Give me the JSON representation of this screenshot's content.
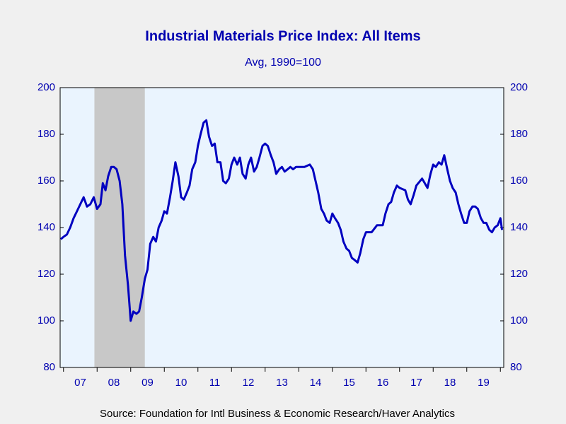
{
  "chart_data": {
    "type": "line",
    "title": "Industrial Materials Price Index: All Items",
    "subtitle": "Avg, 1990=100",
    "source": "Source:  Foundation for Intl Business & Economic Research/Haver Analytics",
    "series": [
      {
        "name": "Industrial Materials Price Index",
        "color": "#0000c0",
        "x": [
          2006.92,
          2007.0,
          2007.1,
          2007.2,
          2007.3,
          2007.4,
          2007.5,
          2007.6,
          2007.7,
          2007.8,
          2007.9,
          2008.0,
          2008.1,
          2008.17,
          2008.25,
          2008.33,
          2008.42,
          2008.5,
          2008.58,
          2008.67,
          2008.75,
          2008.83,
          2008.92,
          2009.0,
          2009.08,
          2009.17,
          2009.25,
          2009.33,
          2009.42,
          2009.5,
          2009.58,
          2009.67,
          2009.75,
          2009.83,
          2009.92,
          2010.0,
          2010.08,
          2010.17,
          2010.25,
          2010.33,
          2010.42,
          2010.5,
          2010.58,
          2010.67,
          2010.75,
          2010.83,
          2010.92,
          2011.0,
          2011.08,
          2011.17,
          2011.25,
          2011.33,
          2011.42,
          2011.5,
          2011.58,
          2011.67,
          2011.75,
          2011.83,
          2011.92,
          2012.0,
          2012.08,
          2012.17,
          2012.25,
          2012.33,
          2012.42,
          2012.5,
          2012.58,
          2012.67,
          2012.75,
          2012.83,
          2012.92,
          2013.0,
          2013.08,
          2013.17,
          2013.25,
          2013.33,
          2013.42,
          2013.5,
          2013.58,
          2013.67,
          2013.75,
          2013.83,
          2013.92,
          2014.0,
          2014.17,
          2014.33,
          2014.42,
          2014.5,
          2014.58,
          2014.67,
          2014.75,
          2014.83,
          2014.92,
          2015.0,
          2015.08,
          2015.17,
          2015.25,
          2015.33,
          2015.42,
          2015.5,
          2015.58,
          2015.67,
          2015.75,
          2015.83,
          2015.92,
          2016.0,
          2016.17,
          2016.33,
          2016.5,
          2016.58,
          2016.67,
          2016.75,
          2016.83,
          2016.92,
          2017.0,
          2017.17,
          2017.25,
          2017.33,
          2017.42,
          2017.5,
          2017.67,
          2017.83,
          2017.92,
          2018.0,
          2018.08,
          2018.17,
          2018.25,
          2018.33,
          2018.42,
          2018.5,
          2018.58,
          2018.67,
          2018.75,
          2018.83,
          2018.92,
          2019.0,
          2019.08,
          2019.17,
          2019.25,
          2019.33,
          2019.42,
          2019.5,
          2019.58,
          2019.67,
          2019.75,
          2019.83,
          2019.92,
          2020.0,
          2020.05
        ],
        "values": [
          135,
          136,
          137,
          140,
          144,
          147,
          150,
          153,
          149,
          150,
          153,
          148,
          150,
          159,
          156,
          162,
          166,
          166,
          165,
          160,
          150,
          128,
          115,
          100,
          104,
          103,
          104,
          110,
          118,
          122,
          133,
          136,
          134,
          140,
          143,
          147,
          146,
          153,
          160,
          168,
          162,
          153,
          152,
          155,
          158,
          165,
          168,
          175,
          180,
          185,
          186,
          179,
          175,
          176,
          168,
          168,
          160,
          159,
          161,
          167,
          170,
          167,
          170,
          163,
          161,
          167,
          170,
          164,
          166,
          170,
          175,
          176,
          175,
          171,
          168,
          163,
          165,
          166,
          164,
          165,
          166,
          165,
          166,
          166,
          166,
          167,
          165,
          160,
          155,
          148,
          146,
          143,
          142,
          146,
          144,
          142,
          139,
          134,
          131,
          130,
          127,
          126,
          125,
          129,
          135,
          138,
          138,
          141,
          141,
          146,
          150,
          151,
          155,
          158,
          157,
          156,
          152,
          150,
          154,
          158,
          161,
          157,
          163,
          167,
          166,
          168,
          167,
          171,
          165,
          160,
          157,
          155,
          150,
          146,
          142,
          142,
          147,
          149,
          149,
          148,
          144,
          142,
          142,
          139,
          138,
          140,
          141,
          144,
          139
        ]
      }
    ],
    "shading": [
      2007.92,
      2009.42
    ],
    "xlim": [
      2006.9,
      2020.1
    ],
    "xticks": [
      {
        "value": 2007.5,
        "label": "07"
      },
      {
        "value": 2008.5,
        "label": "08"
      },
      {
        "value": 2009.5,
        "label": "09"
      },
      {
        "value": 2010.5,
        "label": "10"
      },
      {
        "value": 2011.5,
        "label": "11"
      },
      {
        "value": 2012.5,
        "label": "12"
      },
      {
        "value": 2013.5,
        "label": "13"
      },
      {
        "value": 2014.5,
        "label": "14"
      },
      {
        "value": 2015.5,
        "label": "15"
      },
      {
        "value": 2016.5,
        "label": "16"
      },
      {
        "value": 2017.5,
        "label": "17"
      },
      {
        "value": 2018.5,
        "label": "18"
      },
      {
        "value": 2019.5,
        "label": "19"
      }
    ],
    "xminorticks": [
      2007,
      2008,
      2009,
      2010,
      2011,
      2012,
      2013,
      2014,
      2015,
      2016,
      2017,
      2018,
      2019,
      2020
    ],
    "ylim": [
      80,
      200
    ],
    "yticks": [
      80,
      100,
      120,
      140,
      160,
      180,
      200
    ],
    "y2lim": [
      80,
      200
    ],
    "y2ticks": [
      80,
      100,
      120,
      140,
      160,
      180,
      200
    ]
  }
}
